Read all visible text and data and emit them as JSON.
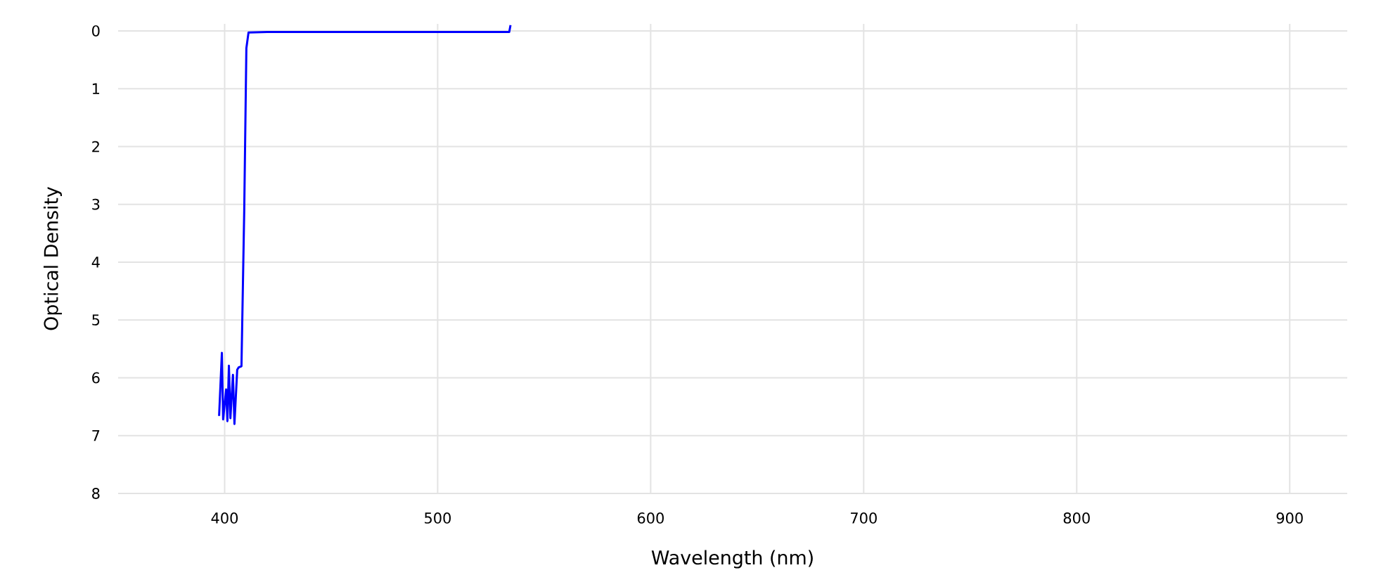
{
  "chart_data": {
    "type": "line",
    "xlabel": "Wavelength (nm)",
    "ylabel": "Optical Density",
    "x": [
      397.4,
      398.7,
      399.3,
      400.7,
      401.3,
      402.0,
      402.7,
      403.9,
      404.6,
      405.9,
      406.6,
      407.9,
      409.2,
      410.2,
      411.2,
      420,
      440,
      460,
      480,
      500,
      520,
      533.6,
      534.2
    ],
    "values": [
      6.66,
      5.57,
      6.72,
      6.2,
      6.75,
      5.79,
      6.7,
      5.95,
      6.8,
      5.86,
      5.82,
      5.8,
      3.1,
      0.3,
      0.03,
      0.02,
      0.02,
      0.02,
      0.02,
      0.02,
      0.02,
      0.02,
      -0.1
    ],
    "color": "#0000ff",
    "xlim": [
      350,
      927
    ],
    "ylim": [
      8,
      -0.12
    ],
    "xticks": [
      400,
      500,
      600,
      700,
      800,
      900
    ],
    "yticks": [
      0,
      1,
      2,
      3,
      4,
      5,
      6,
      7,
      8
    ],
    "grid": true
  }
}
